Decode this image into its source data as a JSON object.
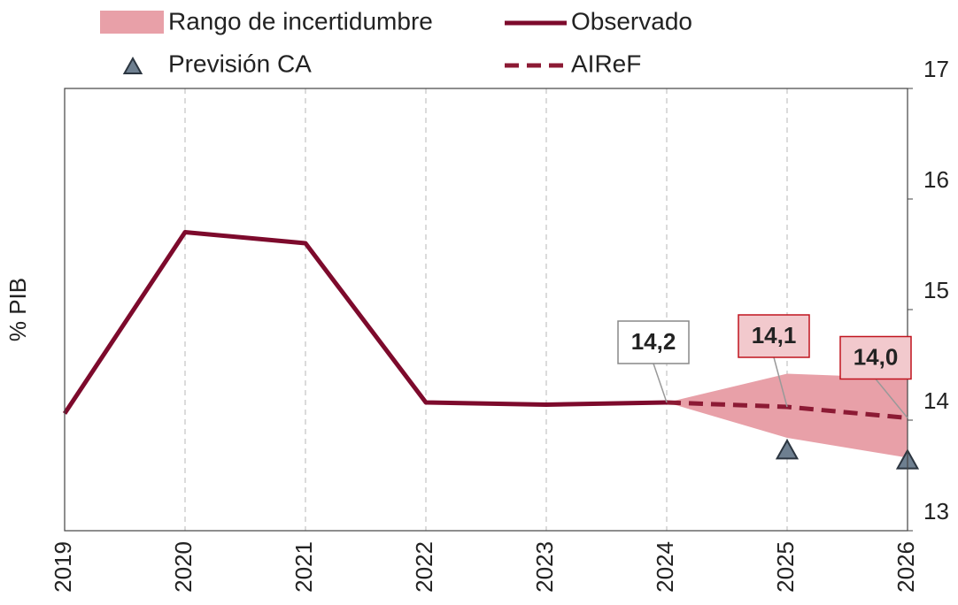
{
  "chart_data": {
    "type": "line",
    "y_label": "% PIB",
    "categories": [
      "2019",
      "2020",
      "2021",
      "2022",
      "2023",
      "2024",
      "2025",
      "2026"
    ],
    "ylim": [
      13,
      17
    ],
    "yticks": [
      13,
      14,
      15,
      16,
      17
    ],
    "y_axis_side": "right",
    "grid": "x",
    "band": {
      "name": "Rango de incertidumbre",
      "color": "#e8a0a8",
      "lower": [
        null,
        null,
        null,
        null,
        null,
        14.16,
        13.84,
        13.66
      ],
      "upper": [
        null,
        null,
        null,
        null,
        null,
        14.16,
        14.42,
        14.38
      ]
    },
    "series": [
      {
        "name": "Observado",
        "color": "#7d0a2c",
        "style": "solid",
        "values": [
          14.06,
          15.7,
          15.6,
          14.16,
          14.14,
          14.16,
          null,
          null
        ],
        "value_labels": [
          null,
          null,
          null,
          null,
          null,
          "14,2",
          null,
          null
        ]
      },
      {
        "name": "AIReF",
        "color": "#8c1a34",
        "style": "dashed",
        "values": [
          null,
          null,
          null,
          null,
          null,
          14.16,
          14.12,
          14.02
        ],
        "value_labels": [
          null,
          null,
          null,
          null,
          null,
          null,
          "14,1",
          "14,0"
        ]
      }
    ],
    "markers": {
      "name": "Previsión CA",
      "color": "#6e7f90",
      "values": [
        null,
        null,
        null,
        null,
        null,
        null,
        13.72,
        13.63
      ]
    }
  }
}
